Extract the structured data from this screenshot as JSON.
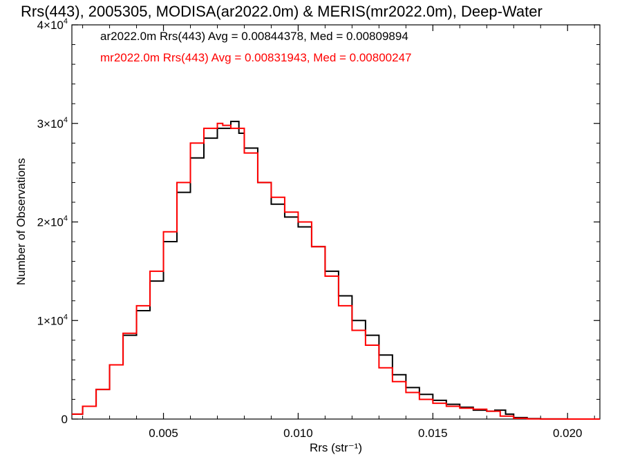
{
  "chart_data": {
    "type": "line",
    "title": "Rrs(443), 2005305, MODISA(ar2022.0m) & MERIS(mr2022.0m), Deep-Water",
    "xlabel": "Rrs (str⁻¹)",
    "ylabel": "Number of Observations",
    "xlim": [
      0.0016,
      0.0212
    ],
    "ylim": [
      0,
      40000
    ],
    "x_ticks": [
      0.005,
      0.01,
      0.015,
      0.02
    ],
    "x_tick_labels": [
      "0.005",
      "0.010",
      "0.015",
      "0.020"
    ],
    "y_ticks": [
      0,
      10000,
      20000,
      30000,
      40000
    ],
    "y_tick_labels": [
      {
        "base": "0",
        "exp": ""
      },
      {
        "base": "1×10",
        "exp": "4"
      },
      {
        "base": "2×10",
        "exp": "4"
      },
      {
        "base": "3×10",
        "exp": "4"
      },
      {
        "base": "4×10",
        "exp": "4"
      }
    ],
    "grid": false,
    "legend_position": "top-left",
    "annotations": [
      "ar2022.0m Rrs(443) Avg = 0.00844378, Med = 0.00809894",
      "mr2022.0m Rrs(443) Avg = 0.00831943, Med = 0.00800247"
    ],
    "series": [
      {
        "name": "ar2022.0m",
        "color": "#000000",
        "x": [
          0.0016,
          0.002,
          0.0025,
          0.003,
          0.0035,
          0.004,
          0.0045,
          0.005,
          0.0055,
          0.006,
          0.0065,
          0.007,
          0.0075,
          0.0078,
          0.008,
          0.0085,
          0.009,
          0.0095,
          0.01,
          0.0105,
          0.011,
          0.0115,
          0.012,
          0.0125,
          0.013,
          0.0135,
          0.014,
          0.0145,
          0.015,
          0.0155,
          0.016,
          0.0165,
          0.017,
          0.0173,
          0.0177,
          0.018,
          0.0185,
          0.019,
          0.02,
          0.0212
        ],
        "y": [
          500,
          1300,
          3000,
          5500,
          8500,
          11000,
          14000,
          18000,
          23000,
          26500,
          28500,
          29500,
          30200,
          29000,
          27500,
          24000,
          21800,
          20500,
          19500,
          17500,
          15000,
          12500,
          10000,
          8500,
          6500,
          4500,
          3200,
          2500,
          1900,
          1500,
          1200,
          900,
          800,
          900,
          500,
          150,
          40,
          10,
          0,
          0
        ]
      },
      {
        "name": "mr2022.0m",
        "color": "#ff0000",
        "x": [
          0.0016,
          0.002,
          0.0025,
          0.003,
          0.0035,
          0.004,
          0.0045,
          0.005,
          0.0055,
          0.006,
          0.0065,
          0.007,
          0.0072,
          0.0075,
          0.008,
          0.0085,
          0.009,
          0.0095,
          0.01,
          0.0105,
          0.011,
          0.0115,
          0.012,
          0.0125,
          0.013,
          0.0135,
          0.014,
          0.0145,
          0.015,
          0.0155,
          0.016,
          0.0165,
          0.017,
          0.0175,
          0.018,
          0.0185,
          0.019,
          0.02,
          0.0212
        ],
        "y": [
          500,
          1300,
          3000,
          5500,
          8700,
          11500,
          15000,
          19000,
          24000,
          28000,
          29500,
          30000,
          29800,
          29500,
          27000,
          24000,
          22500,
          21000,
          20000,
          17500,
          14500,
          11500,
          9000,
          7500,
          5200,
          3800,
          2700,
          2000,
          1600,
          1300,
          1100,
          1000,
          800,
          300,
          80,
          20,
          5,
          0,
          0
        ]
      }
    ]
  }
}
